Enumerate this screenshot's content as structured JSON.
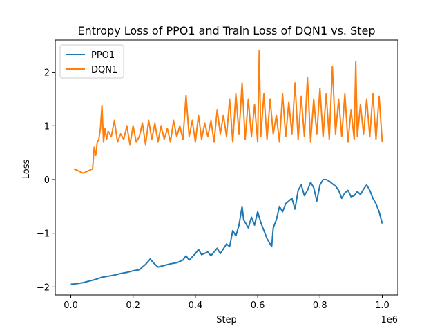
{
  "chart_data": {
    "type": "line",
    "title": "Entropy Loss of PPO1 and Train Loss of DQN1 vs. Step",
    "xlabel": "Step",
    "ylabel": "Loss",
    "x_offset_label": "1e6",
    "xlim": [
      -50000,
      1050000
    ],
    "ylim": [
      -2.15,
      2.6
    ],
    "x_ticks": [
      0,
      200000,
      400000,
      600000,
      800000,
      1000000
    ],
    "x_tick_labels": [
      "0.0",
      "0.2",
      "0.4",
      "0.6",
      "0.8",
      "1.0"
    ],
    "y_ticks": [
      -2,
      -1,
      0,
      1,
      2
    ],
    "y_tick_labels": [
      "−2",
      "−1",
      "0",
      "1",
      "2"
    ],
    "grid": false,
    "legend_position": "top-left",
    "series": [
      {
        "name": "PPO1",
        "color": "#1f77b4",
        "x": [
          0,
          20000,
          40000,
          60000,
          80000,
          100000,
          120000,
          140000,
          160000,
          180000,
          200000,
          220000,
          240000,
          255000,
          265000,
          280000,
          300000,
          320000,
          340000,
          360000,
          370000,
          380000,
          400000,
          410000,
          420000,
          440000,
          450000,
          470000,
          480000,
          500000,
          510000,
          520000,
          530000,
          540000,
          550000,
          555000,
          560000,
          570000,
          580000,
          590000,
          600000,
          610000,
          620000,
          630000,
          640000,
          645000,
          650000,
          660000,
          670000,
          680000,
          690000,
          700000,
          710000,
          720000,
          730000,
          740000,
          750000,
          760000,
          770000,
          780000,
          790000,
          800000,
          810000,
          820000,
          830000,
          840000,
          850000,
          860000,
          870000,
          880000,
          890000,
          900000,
          910000,
          920000,
          930000,
          940000,
          950000,
          960000,
          970000,
          980000,
          990000,
          1000000
        ],
        "values": [
          -1.95,
          -1.94,
          -1.92,
          -1.89,
          -1.86,
          -1.82,
          -1.8,
          -1.78,
          -1.75,
          -1.73,
          -1.7,
          -1.68,
          -1.58,
          -1.48,
          -1.55,
          -1.63,
          -1.6,
          -1.57,
          -1.55,
          -1.5,
          -1.42,
          -1.5,
          -1.38,
          -1.3,
          -1.4,
          -1.35,
          -1.42,
          -1.28,
          -1.38,
          -1.2,
          -1.25,
          -0.95,
          -1.05,
          -0.85,
          -0.5,
          -0.75,
          -0.8,
          -0.9,
          -0.7,
          -0.85,
          -0.6,
          -0.8,
          -0.95,
          -1.1,
          -1.2,
          -1.25,
          -0.9,
          -0.75,
          -0.5,
          -0.6,
          -0.45,
          -0.4,
          -0.35,
          -0.55,
          -0.2,
          -0.1,
          -0.3,
          -0.2,
          -0.05,
          -0.15,
          -0.4,
          -0.1,
          0.0,
          0.0,
          -0.03,
          -0.08,
          -0.12,
          -0.2,
          -0.35,
          -0.25,
          -0.2,
          -0.32,
          -0.3,
          -0.22,
          -0.28,
          -0.18,
          -0.1,
          -0.2,
          -0.35,
          -0.45,
          -0.6,
          -0.82
        ]
      },
      {
        "name": "DQN1",
        "color": "#ff7f0e",
        "x": [
          10000,
          40000,
          70000,
          75000,
          80000,
          85000,
          90000,
          95000,
          100000,
          105000,
          110000,
          115000,
          120000,
          130000,
          140000,
          150000,
          160000,
          170000,
          180000,
          190000,
          200000,
          210000,
          220000,
          230000,
          240000,
          250000,
          260000,
          270000,
          280000,
          290000,
          300000,
          310000,
          320000,
          330000,
          340000,
          350000,
          360000,
          370000,
          380000,
          390000,
          400000,
          410000,
          420000,
          430000,
          440000,
          450000,
          460000,
          470000,
          480000,
          490000,
          500000,
          510000,
          520000,
          530000,
          540000,
          550000,
          560000,
          570000,
          580000,
          590000,
          600000,
          605000,
          610000,
          620000,
          630000,
          640000,
          650000,
          660000,
          670000,
          680000,
          690000,
          700000,
          710000,
          720000,
          730000,
          740000,
          750000,
          760000,
          770000,
          780000,
          790000,
          800000,
          810000,
          820000,
          830000,
          840000,
          850000,
          860000,
          870000,
          880000,
          890000,
          900000,
          910000,
          915000,
          920000,
          930000,
          940000,
          950000,
          960000,
          970000,
          980000,
          990000,
          1000000
        ],
        "values": [
          0.2,
          0.12,
          0.2,
          0.6,
          0.45,
          0.7,
          0.75,
          0.95,
          1.38,
          0.7,
          0.95,
          0.75,
          0.9,
          0.8,
          1.1,
          0.7,
          0.85,
          0.75,
          1.0,
          0.65,
          1.0,
          0.7,
          0.8,
          1.05,
          0.65,
          1.1,
          0.75,
          1.05,
          0.7,
          1.0,
          0.75,
          0.95,
          0.7,
          1.1,
          0.8,
          1.0,
          0.75,
          1.57,
          0.8,
          1.1,
          0.7,
          1.2,
          0.75,
          1.05,
          0.8,
          1.1,
          0.7,
          1.3,
          0.85,
          1.2,
          0.8,
          1.5,
          0.7,
          1.6,
          0.85,
          1.8,
          0.75,
          1.5,
          0.8,
          1.4,
          0.7,
          2.4,
          0.8,
          1.6,
          0.75,
          1.5,
          0.85,
          1.2,
          0.7,
          1.6,
          0.8,
          1.45,
          0.85,
          1.8,
          0.75,
          1.55,
          0.8,
          1.9,
          0.7,
          1.5,
          0.85,
          1.7,
          0.8,
          1.6,
          0.75,
          2.1,
          0.85,
          1.5,
          0.8,
          1.6,
          0.7,
          1.3,
          0.75,
          2.2,
          0.8,
          1.4,
          0.85,
          1.5,
          0.8,
          1.6,
          0.75,
          1.55,
          0.7
        ]
      }
    ]
  }
}
